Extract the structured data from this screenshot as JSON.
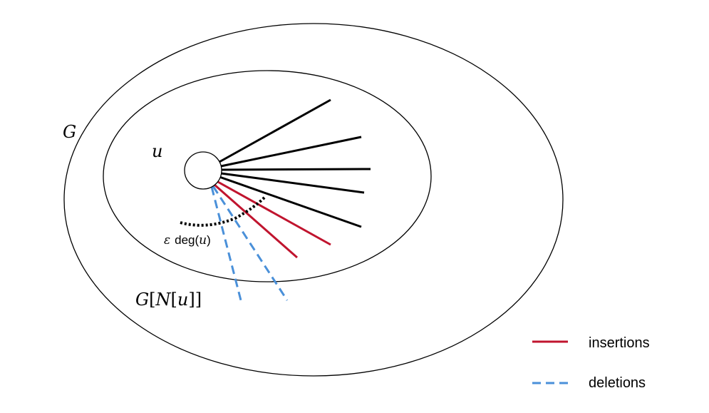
{
  "labels": {
    "outer_graph": "G",
    "vertex": "u",
    "neighborhood_prefix": "G[",
    "neighborhood_N": "N",
    "neighborhood_open": "[",
    "neighborhood_u": "u",
    "neighborhood_close": "]]",
    "epsilon": "ε",
    "deg": "deg(",
    "deg_u": "u",
    "deg_close": ")"
  },
  "legend": {
    "insertions": "insertions",
    "deletions": "deletions"
  },
  "colors": {
    "edge": "#000000",
    "insertion": "#c0142e",
    "deletion": "#4a90d9",
    "outline": "#000000",
    "threshold": "#000000"
  }
}
